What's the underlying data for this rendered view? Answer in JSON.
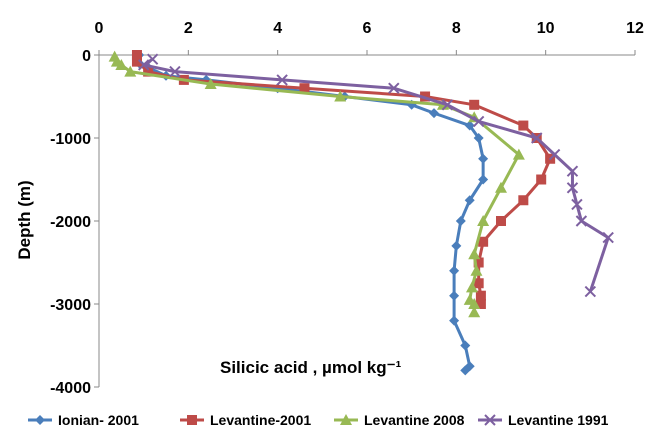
{
  "chart_data": {
    "type": "line",
    "title": "",
    "xlabel": "Silicic acid , µmol kg⁻¹",
    "ylabel": "Depth (m)",
    "xlim": [
      0,
      12
    ],
    "ylim": [
      -4000,
      0
    ],
    "xticks": [
      "0",
      "2",
      "4",
      "6",
      "8",
      "10",
      "12"
    ],
    "yticks": [
      "0",
      "-1000",
      "-2000",
      "-3000",
      "-4000"
    ],
    "x_axis_position": "top",
    "grid": false,
    "legend_position": "bottom",
    "series": [
      {
        "name": "Ionian- 2001",
        "color": "#4a7ebb",
        "marker": "diamond",
        "points": [
          [
            0.9,
            0
          ],
          [
            0.9,
            -100
          ],
          [
            1.1,
            -150
          ],
          [
            1.5,
            -250
          ],
          [
            2.4,
            -300
          ],
          [
            4.0,
            -400
          ],
          [
            5.5,
            -500
          ],
          [
            7.0,
            -600
          ],
          [
            7.5,
            -700
          ],
          [
            8.3,
            -850
          ],
          [
            8.5,
            -1000
          ],
          [
            8.6,
            -1250
          ],
          [
            8.6,
            -1500
          ],
          [
            8.3,
            -1750
          ],
          [
            8.1,
            -2000
          ],
          [
            8.0,
            -2300
          ],
          [
            7.95,
            -2600
          ],
          [
            7.95,
            -2900
          ],
          [
            7.95,
            -3200
          ],
          [
            8.2,
            -3500
          ],
          [
            8.3,
            -3750
          ],
          [
            8.2,
            -3800
          ]
        ]
      },
      {
        "name": "Levantine-2001",
        "color": "#be4b48",
        "marker": "square",
        "points": [
          [
            0.85,
            0
          ],
          [
            0.85,
            -80
          ],
          [
            1.1,
            -200
          ],
          [
            1.9,
            -300
          ],
          [
            4.6,
            -400
          ],
          [
            7.3,
            -500
          ],
          [
            8.4,
            -600
          ],
          [
            9.5,
            -850
          ],
          [
            9.8,
            -1000
          ],
          [
            10.1,
            -1250
          ],
          [
            9.9,
            -1500
          ],
          [
            9.5,
            -1750
          ],
          [
            9.0,
            -2000
          ],
          [
            8.6,
            -2250
          ],
          [
            8.5,
            -2500
          ],
          [
            8.5,
            -2750
          ],
          [
            8.55,
            -2900
          ],
          [
            8.55,
            -3000
          ]
        ]
      },
      {
        "name": "Levantine 2008",
        "color": "#98b954",
        "marker": "triangle",
        "points": [
          [
            0.35,
            -20
          ],
          [
            0.4,
            -80
          ],
          [
            0.5,
            -120
          ],
          [
            0.7,
            -200
          ],
          [
            2.5,
            -350
          ],
          [
            5.4,
            -500
          ],
          [
            7.7,
            -600
          ],
          [
            8.4,
            -750
          ],
          [
            9.4,
            -1200
          ],
          [
            9.0,
            -1600
          ],
          [
            8.6,
            -2000
          ],
          [
            8.4,
            -2400
          ],
          [
            8.45,
            -2600
          ],
          [
            8.35,
            -2800
          ],
          [
            8.3,
            -2950
          ],
          [
            8.4,
            -3000
          ],
          [
            8.4,
            -3100
          ]
        ]
      },
      {
        "name": "Levantine 1991",
        "color": "#7d60a0",
        "marker": "x",
        "points": [
          [
            1.2,
            -50
          ],
          [
            1.0,
            -120
          ],
          [
            1.7,
            -200
          ],
          [
            4.1,
            -300
          ],
          [
            6.6,
            -400
          ],
          [
            7.8,
            -600
          ],
          [
            8.5,
            -800
          ],
          [
            9.8,
            -1000
          ],
          [
            10.2,
            -1200
          ],
          [
            10.6,
            -1400
          ],
          [
            10.6,
            -1600
          ],
          [
            10.7,
            -1800
          ],
          [
            10.8,
            -2000
          ],
          [
            11.4,
            -2200
          ],
          [
            11.0,
            -2850
          ]
        ]
      }
    ]
  }
}
